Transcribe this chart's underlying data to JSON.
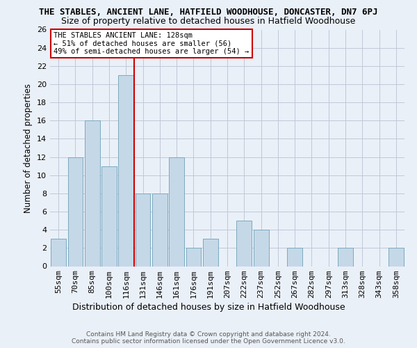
{
  "title": "THE STABLES, ANCIENT LANE, HATFIELD WOODHOUSE, DONCASTER, DN7 6PJ",
  "subtitle": "Size of property relative to detached houses in Hatfield Woodhouse",
  "xlabel": "Distribution of detached houses by size in Hatfield Woodhouse",
  "ylabel": "Number of detached properties",
  "categories": [
    "55sqm",
    "70sqm",
    "85sqm",
    "100sqm",
    "116sqm",
    "131sqm",
    "146sqm",
    "161sqm",
    "176sqm",
    "191sqm",
    "207sqm",
    "222sqm",
    "237sqm",
    "252sqm",
    "267sqm",
    "282sqm",
    "297sqm",
    "313sqm",
    "328sqm",
    "343sqm",
    "358sqm"
  ],
  "values": [
    3,
    12,
    16,
    11,
    21,
    8,
    8,
    12,
    2,
    3,
    0,
    5,
    4,
    0,
    2,
    0,
    0,
    2,
    0,
    0,
    2
  ],
  "bar_color": "#c5d8e8",
  "bar_edgecolor": "#7aaabf",
  "bar_linewidth": 0.7,
  "grid_color": "#c0c8d8",
  "background_color": "#eaf0f8",
  "vline_color": "#cc0000",
  "annotation_text": "THE STABLES ANCIENT LANE: 128sqm\n← 51% of detached houses are smaller (56)\n49% of semi-detached houses are larger (54) →",
  "annotation_box_color": "#ffffff",
  "annotation_box_edgecolor": "#cc0000",
  "ylim": [
    0,
    26
  ],
  "yticks": [
    0,
    2,
    4,
    6,
    8,
    10,
    12,
    14,
    16,
    18,
    20,
    22,
    24,
    26
  ],
  "title_fontsize": 9,
  "subtitle_fontsize": 9,
  "xlabel_fontsize": 9,
  "ylabel_fontsize": 8.5,
  "tick_fontsize": 8,
  "annotation_fontsize": 7.5,
  "footer_text": "Contains HM Land Registry data © Crown copyright and database right 2024.\nContains public sector information licensed under the Open Government Licence v3.0.",
  "footer_fontsize": 6.5
}
